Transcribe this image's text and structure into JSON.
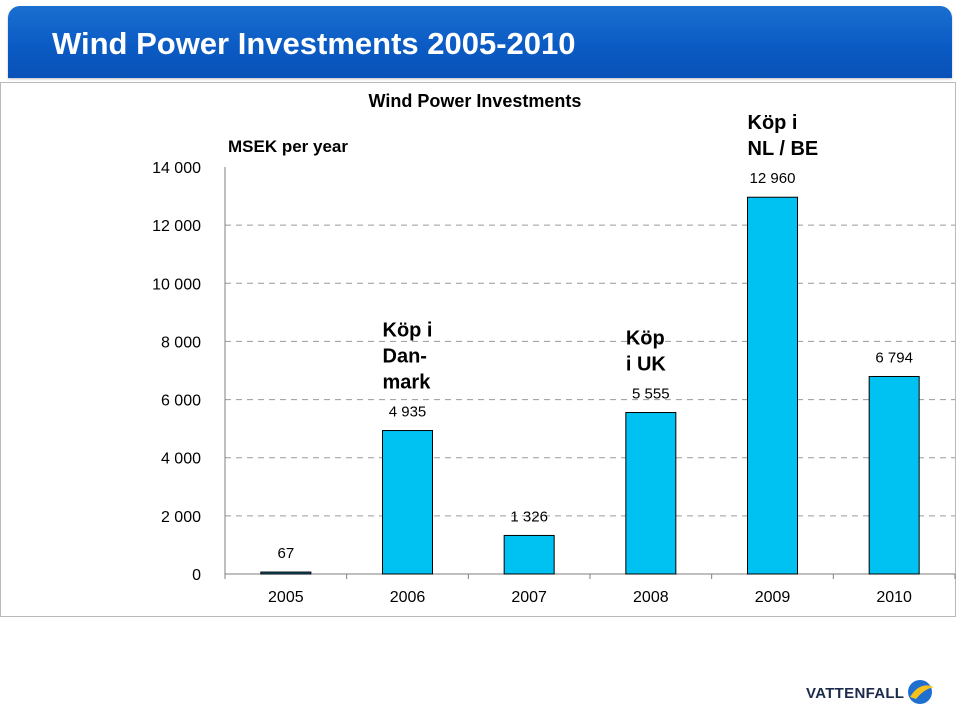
{
  "page": {
    "title": "Wind Power Investments 2005-2010",
    "logo_text": "VATTENFALL",
    "logo_colors": {
      "blue": "#1f6fd1",
      "yellow": "#f7c01a"
    }
  },
  "chart_data": {
    "type": "bar",
    "title": "Wind Power Investments",
    "unit_label": "MSEK per year",
    "xlabel": "",
    "ylabel": "",
    "categories": [
      "2005",
      "2006",
      "2007",
      "2008",
      "2009",
      "2010"
    ],
    "values": [
      67,
      4935,
      1326,
      5555,
      12960,
      6794
    ],
    "value_labels": [
      "67",
      "4 935",
      "1 326",
      "5 555",
      "12 960",
      "6 794"
    ],
    "annotations": [
      {
        "category": "2006",
        "lines": [
          "Köp i",
          "Dan-",
          "mark"
        ]
      },
      {
        "category": "2008",
        "lines": [
          "Köp",
          "i UK"
        ]
      },
      {
        "category": "2009",
        "lines": [
          "Köp i",
          "NL / BE"
        ]
      }
    ],
    "ylim": [
      0,
      14000
    ],
    "yticks": [
      0,
      2000,
      4000,
      6000,
      8000,
      10000,
      12000,
      14000
    ],
    "ytick_labels": [
      "0",
      "2 000",
      "4 000",
      "6 000",
      "8 000",
      "10 000",
      "12 000",
      "14 000"
    ],
    "grid": true,
    "legend": "none",
    "colors": {
      "bar_fill": "#00c2f2",
      "bar_first_fill": "#156a8c",
      "bar_stroke": "#000000",
      "grid": "#9a9a9a"
    }
  }
}
